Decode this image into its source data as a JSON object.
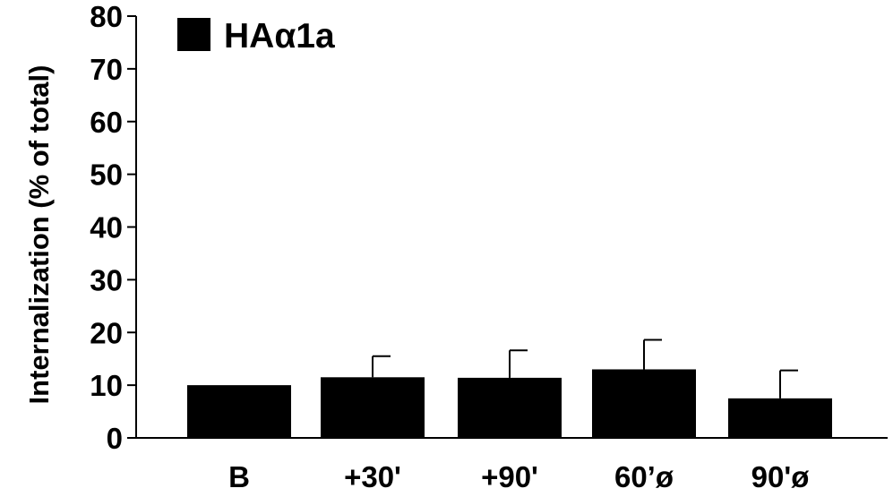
{
  "chart_data": {
    "type": "bar",
    "title": "",
    "xlabel": "",
    "ylabel": "Internalization (% of total)",
    "ylim": [
      0,
      80
    ],
    "yticks": [
      0,
      10,
      20,
      30,
      40,
      50,
      60,
      70,
      80
    ],
    "categories": [
      "B",
      "+30'",
      "+90'",
      "60’ø",
      "90'ø"
    ],
    "series": [
      {
        "name": "HAα1a",
        "color": "#000000",
        "values": [
          10.0,
          11.5,
          11.4,
          13.0,
          7.5
        ],
        "errors": [
          0.2,
          4.0,
          5.2,
          5.6,
          5.3
        ]
      }
    ],
    "legend": {
      "position": "top-left",
      "label": "HAα1a"
    },
    "grid": false
  }
}
